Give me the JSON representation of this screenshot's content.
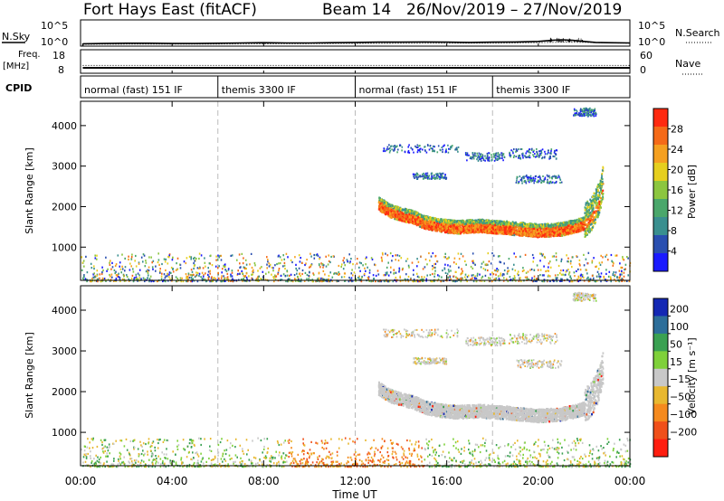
{
  "header": {
    "title": "Fort Hays East (fitACF)",
    "beam": "Beam 14",
    "date_range": "26/Nov/2019 – 27/Nov/2019"
  },
  "chart_data": [
    {
      "type": "line",
      "id": "noise",
      "left_label": "N.Sky",
      "right_label": "N.Search",
      "left_ticks": [
        "10^5",
        "10^0"
      ],
      "right_ticks": [
        "10^5",
        "10^0"
      ],
      "x_range_hours": [
        0,
        24
      ],
      "series": [
        {
          "style": "solid",
          "points": [
            [
              0.1,
              0.45
            ],
            [
              1,
              0.5
            ],
            [
              2,
              0.55
            ],
            [
              3,
              0.55
            ],
            [
              4,
              0.5
            ],
            [
              5,
              0.5
            ],
            [
              6,
              0.55
            ],
            [
              7,
              0.6
            ],
            [
              8,
              0.65
            ],
            [
              9,
              0.6
            ],
            [
              10,
              0.6
            ],
            [
              11,
              0.65
            ],
            [
              12,
              0.7
            ],
            [
              13,
              0.75
            ],
            [
              14,
              0.75
            ],
            [
              15,
              0.8
            ],
            [
              16,
              0.75
            ],
            [
              17,
              0.7
            ],
            [
              18,
              0.75
            ],
            [
              19,
              0.8
            ],
            [
              20,
              0.9
            ],
            [
              20.6,
              1.1
            ],
            [
              21,
              1.2
            ],
            [
              21.5,
              1.1
            ],
            [
              22,
              0.9
            ],
            [
              22.5,
              0.7
            ],
            [
              23,
              0.65
            ],
            [
              24,
              0.6
            ]
          ]
        },
        {
          "style": "dotted",
          "points": [
            [
              0.1,
              0.35
            ],
            [
              3,
              0.4
            ],
            [
              6,
              0.4
            ],
            [
              9,
              0.45
            ],
            [
              12,
              0.5
            ],
            [
              15,
              0.55
            ],
            [
              18,
              0.55
            ],
            [
              20,
              0.65
            ],
            [
              21,
              0.75
            ],
            [
              22,
              0.7
            ],
            [
              24,
              0.55
            ]
          ]
        }
      ]
    },
    {
      "type": "line",
      "id": "frequency",
      "left_label": "Freq.",
      "left_unit": "[MHz]",
      "right_label": "Nave",
      "left_ticks": [
        "18",
        "8"
      ],
      "right_ticks": [
        "60",
        "0"
      ],
      "x_range_hours": [
        0,
        24
      ],
      "series": [
        {
          "style": "solid",
          "points": [
            [
              0.1,
              10.3
            ],
            [
              24,
              10.3
            ]
          ]
        },
        {
          "style": "dotted",
          "points": [
            [
              0.1,
              11.3
            ],
            [
              24,
              11.3
            ]
          ]
        }
      ]
    },
    {
      "type": "table",
      "id": "cpid",
      "label": "CPID",
      "segments": [
        {
          "start": 0,
          "end": 6,
          "label": "normal (fast) 151 IF"
        },
        {
          "start": 6,
          "end": 12,
          "label": "themis 3300 IF"
        },
        {
          "start": 12,
          "end": 18,
          "label": "normal (fast) 151 IF"
        },
        {
          "start": 18,
          "end": 24,
          "label": "themis 3300 IF"
        }
      ]
    },
    {
      "type": "heatmap",
      "id": "power",
      "ylabel": "Slant Range [km]",
      "ylim": [
        180,
        4600
      ],
      "yticks": [
        1000,
        2000,
        3000,
        4000
      ],
      "x_range_hours": [
        0,
        24
      ],
      "colorbar": {
        "label": "Power [dB]",
        "ticks": [
          4,
          8,
          12,
          16,
          20,
          24,
          28
        ],
        "range": [
          0,
          32
        ]
      },
      "dashed_lines_hours": [
        6,
        12,
        18
      ]
    },
    {
      "type": "heatmap",
      "id": "velocity",
      "ylabel": "Slant Range [km]",
      "ylim": [
        180,
        4600
      ],
      "yticks": [
        1000,
        2000,
        3000,
        4000
      ],
      "x_range_hours": [
        0,
        24
      ],
      "xticks_hours": [
        0,
        4,
        8,
        12,
        16,
        20,
        24
      ],
      "xtick_labels": [
        "00:00",
        "04:00",
        "08:00",
        "12:00",
        "16:00",
        "20:00",
        "00:00"
      ],
      "xlabel": "Time UT",
      "colorbar": {
        "label": "Velocity [m s⁻¹]",
        "ticks": [
          "200",
          "100",
          "50",
          "15",
          "−15",
          "−50",
          "−100",
          "−200"
        ]
      },
      "dashed_lines_hours": [
        6,
        12,
        18
      ]
    }
  ],
  "features": {
    "main_echo_band": [
      [
        13.0,
        2050
      ],
      [
        13.5,
        1870
      ],
      [
        14.0,
        1780
      ],
      [
        14.5,
        1720
      ],
      [
        15.0,
        1590
      ],
      [
        15.5,
        1530
      ],
      [
        16.0,
        1490
      ],
      [
        16.5,
        1470
      ],
      [
        17.0,
        1490
      ],
      [
        17.5,
        1500
      ],
      [
        18.0,
        1470
      ],
      [
        18.5,
        1460
      ],
      [
        19.0,
        1430
      ],
      [
        19.5,
        1410
      ],
      [
        20.0,
        1380
      ],
      [
        20.5,
        1400
      ],
      [
        21.0,
        1420
      ],
      [
        21.5,
        1480
      ],
      [
        22.0,
        1560
      ],
      [
        22.3,
        1720
      ],
      [
        22.6,
        2050
      ],
      [
        22.8,
        2500
      ]
    ],
    "upper_patches": [
      {
        "x0": 13.2,
        "x1": 16.5,
        "y0": 3350,
        "y1": 3550
      },
      {
        "x0": 16.8,
        "x1": 18.5,
        "y0": 3150,
        "y1": 3350
      },
      {
        "x0": 18.7,
        "x1": 20.8,
        "y0": 3200,
        "y1": 3450
      },
      {
        "x0": 14.5,
        "x1": 16.0,
        "y0": 2700,
        "y1": 2850
      },
      {
        "x0": 19.0,
        "x1": 21.0,
        "y0": 2600,
        "y1": 2800
      },
      {
        "x0": 21.5,
        "x1": 22.5,
        "y0": 4250,
        "y1": 4450
      }
    ]
  }
}
